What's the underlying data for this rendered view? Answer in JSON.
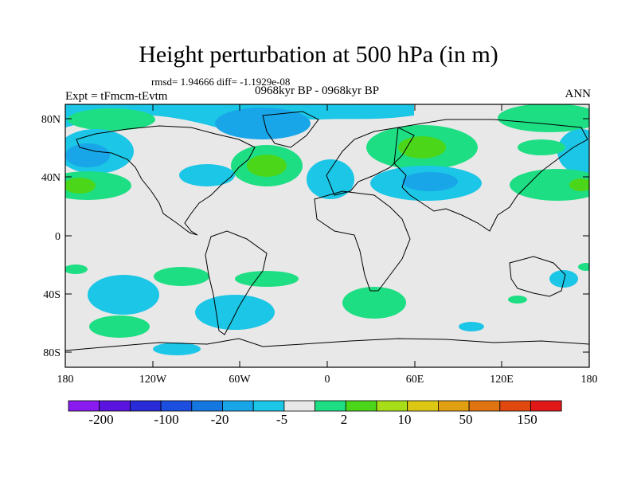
{
  "header": {
    "title": "Height perturbation at 500 hPa (in m)",
    "stats": "rmsd= 1.94666 diff= -1.1929e-08",
    "period": "0968kyr BP - 0968kyr BP",
    "experiment": "Expt = tFmcm-tEvtm",
    "season": "ANN"
  },
  "map": {
    "lat_labels": [
      "80N",
      "40N",
      "0",
      "40S",
      "80S"
    ],
    "lon_labels": [
      "180",
      "120W",
      "60W",
      "0",
      "60E",
      "120E",
      "180"
    ],
    "background_color": "#e8e8e8"
  },
  "colorbar": {
    "labels": [
      "-200",
      "-100",
      "-20",
      "-5",
      "2",
      "10",
      "50",
      "150"
    ],
    "colors": [
      "#8a1bf0",
      "#5b14e0",
      "#2a2bd8",
      "#1c4fe0",
      "#1478e0",
      "#18a6e8",
      "#1cc6e6",
      "#e8e8e8",
      "#1ede84",
      "#4cd61a",
      "#a7de17",
      "#dcc814",
      "#e0a012",
      "#e07410",
      "#e04810",
      "#e01818"
    ]
  },
  "legend_colors": {
    "negative": "#1cc6e6",
    "strong_negative": "#18a6e8",
    "positive": "#1ede84",
    "strong_positive": "#4cd61a"
  }
}
